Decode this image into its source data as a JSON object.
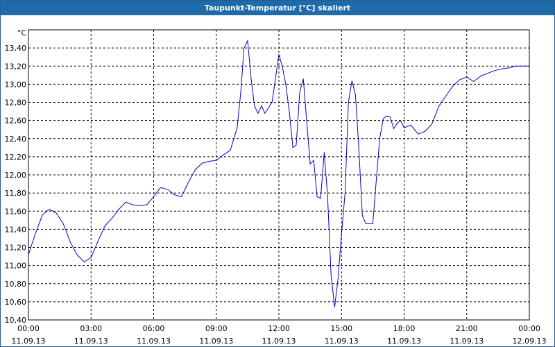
{
  "window": {
    "title": "Taupunkt-Temperatur [°C] skaliert"
  },
  "colors": {
    "titlebar": "#1f6aa8",
    "line": "#0000c8",
    "grid": "#000000",
    "plot_bg": "#ffffff"
  },
  "chart_data": {
    "type": "line",
    "title": "Taupunkt-Temperatur [°C] skaliert",
    "ylabel": "°C",
    "xlabel": "",
    "ylim": [
      10.4,
      13.6
    ],
    "xlim_hours": [
      0,
      24
    ],
    "grid": true,
    "y_ticks": [
      "10,40",
      "10,60",
      "10,80",
      "11,00",
      "11,20",
      "11,40",
      "11,60",
      "11,80",
      "12,00",
      "12,20",
      "12,40",
      "12,60",
      "12,80",
      "13,00",
      "13,20",
      "13,40"
    ],
    "x_ticks": [
      {
        "time": "00:00",
        "date": "11.09.13"
      },
      {
        "time": "03:00",
        "date": "11.09.13"
      },
      {
        "time": "06:00",
        "date": "11.09.13"
      },
      {
        "time": "09:00",
        "date": "11.09.13"
      },
      {
        "time": "12:00",
        "date": "11.09.13"
      },
      {
        "time": "15:00",
        "date": "11.09.13"
      },
      {
        "time": "18:00",
        "date": "11.09.13"
      },
      {
        "time": "21:00",
        "date": "11.09.13"
      },
      {
        "time": "00:00",
        "date": "12.09.13"
      }
    ],
    "series": [
      {
        "name": "",
        "x_hours": [
          0,
          0.33,
          0.67,
          1.0,
          1.33,
          1.67,
          2.0,
          2.33,
          2.67,
          3.0,
          3.33,
          3.67,
          4.0,
          4.33,
          4.67,
          5.0,
          5.33,
          5.67,
          6.0,
          6.33,
          6.67,
          7.0,
          7.33,
          7.67,
          8.0,
          8.33,
          8.67,
          9.0,
          9.33,
          9.67,
          10.0,
          10.17,
          10.33,
          10.5,
          10.67,
          10.83,
          11.0,
          11.17,
          11.33,
          11.67,
          11.83,
          12.0,
          12.17,
          12.33,
          12.5,
          12.67,
          12.83,
          13.0,
          13.17,
          13.33,
          13.5,
          13.67,
          13.83,
          14.0,
          14.17,
          14.33,
          14.5,
          14.67,
          14.83,
          15.0,
          15.17,
          15.33,
          15.5,
          15.67,
          15.83,
          16.0,
          16.17,
          16.5,
          16.67,
          16.83,
          17.0,
          17.17,
          17.33,
          17.5,
          17.67,
          17.83,
          18.0,
          18.33,
          18.67,
          19.0,
          19.33,
          19.67,
          20.0,
          20.33,
          20.67,
          21.0,
          21.33,
          21.67,
          22.0,
          22.33,
          22.67,
          23.0,
          23.33,
          23.67,
          24.0
        ],
        "values": [
          11.12,
          11.35,
          11.56,
          11.62,
          11.58,
          11.46,
          11.26,
          11.12,
          11.04,
          11.09,
          11.27,
          11.44,
          11.52,
          11.62,
          11.7,
          11.67,
          11.66,
          11.67,
          11.76,
          11.86,
          11.84,
          11.78,
          11.76,
          11.92,
          12.06,
          12.13,
          12.15,
          12.16,
          12.22,
          12.27,
          12.52,
          12.9,
          13.4,
          13.48,
          13.06,
          12.76,
          12.68,
          12.76,
          12.68,
          12.8,
          13.05,
          13.33,
          13.19,
          13.0,
          12.7,
          12.3,
          12.33,
          12.92,
          13.06,
          12.6,
          12.12,
          12.16,
          11.76,
          11.74,
          12.25,
          11.78,
          10.9,
          10.54,
          10.84,
          11.35,
          11.8,
          12.8,
          13.04,
          12.88,
          12.3,
          11.55,
          11.46,
          11.46,
          11.95,
          12.4,
          12.62,
          12.65,
          12.64,
          12.51,
          12.57,
          12.6,
          12.52,
          12.55,
          12.45,
          12.48,
          12.56,
          12.76,
          12.87,
          12.98,
          13.05,
          13.08,
          13.03,
          13.09,
          13.12,
          13.15,
          13.17,
          13.18,
          13.2,
          13.2,
          13.2
        ]
      }
    ]
  }
}
